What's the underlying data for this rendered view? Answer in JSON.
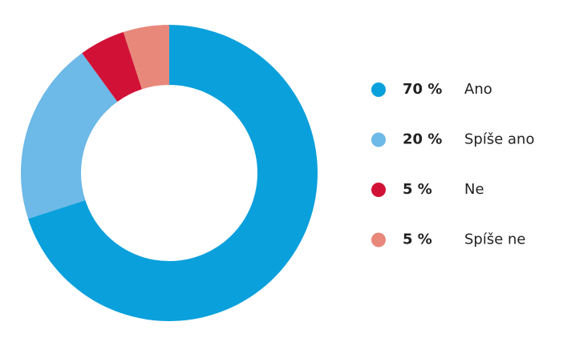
{
  "chart_data": {
    "type": "donut",
    "categories": [
      "Ano",
      "Spíše ano",
      "Ne",
      "Spíše ne"
    ],
    "values": [
      70,
      20,
      5,
      5
    ],
    "value_labels": [
      "70 %",
      "20 %",
      "5 %",
      "5 %"
    ],
    "colors": [
      "#0aa0dc",
      "#6db9e7",
      "#d11236",
      "#e8887b"
    ]
  }
}
